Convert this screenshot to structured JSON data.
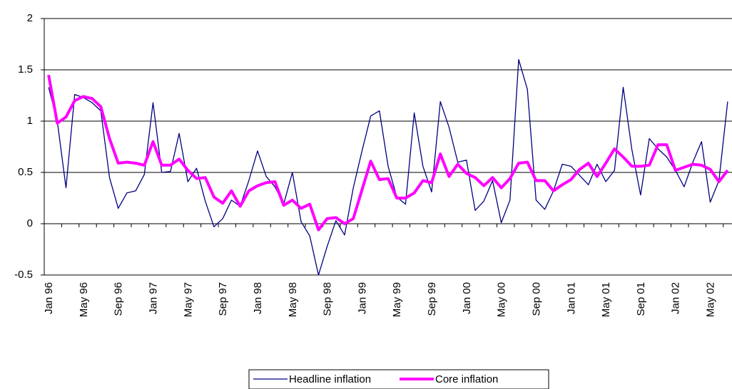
{
  "chart_data": {
    "type": "line",
    "categories": [
      "Jan 96",
      null,
      null,
      null,
      "May 96",
      null,
      null,
      null,
      "Sep 96",
      null,
      null,
      null,
      "Jan 97",
      null,
      null,
      null,
      "May 97",
      null,
      null,
      null,
      "Sep 97",
      null,
      null,
      null,
      "Jan 98",
      null,
      null,
      null,
      "May 98",
      null,
      null,
      null,
      "Sep 98",
      null,
      null,
      null,
      "Jan 99",
      null,
      null,
      null,
      "May 99",
      null,
      null,
      null,
      "Sep 99",
      null,
      null,
      null,
      "Jan 00",
      null,
      null,
      null,
      "May 00",
      null,
      null,
      null,
      "Sep 00",
      null,
      null,
      null,
      "Jan 01",
      null,
      null,
      null,
      "May 01",
      null,
      null,
      null,
      "Sep 01",
      null,
      null,
      null,
      "Jan 02",
      null,
      null,
      null,
      "May 02",
      null,
      null
    ],
    "series": [
      {
        "name": "Headline inflation",
        "color": "#000080",
        "values": [
          1.33,
          1.0,
          0.35,
          1.26,
          1.23,
          1.18,
          1.1,
          0.45,
          0.15,
          0.3,
          0.32,
          0.48,
          1.18,
          0.5,
          0.51,
          0.88,
          0.41,
          0.54,
          0.22,
          -0.03,
          0.05,
          0.23,
          0.17,
          0.42,
          0.71,
          0.46,
          0.36,
          0.19,
          0.5,
          0.02,
          -0.12,
          -0.5,
          -0.22,
          0.03,
          -0.11,
          0.35,
          0.71,
          1.05,
          1.1,
          0.56,
          0.26,
          0.19,
          1.08,
          0.56,
          0.31,
          1.19,
          0.94,
          0.6,
          0.62,
          0.13,
          0.22,
          0.42,
          0.01,
          0.23,
          1.6,
          1.31,
          0.23,
          0.14,
          0.32,
          0.58,
          0.56,
          0.47,
          0.38,
          0.58,
          0.41,
          0.52,
          1.33,
          0.72,
          0.28,
          0.83,
          0.73,
          0.65,
          0.52,
          0.36,
          0.6,
          0.8,
          0.21,
          0.42,
          1.19
        ]
      },
      {
        "name": "Core inflation",
        "color": "#ff00ff",
        "values": [
          1.45,
          0.98,
          1.04,
          1.2,
          1.24,
          1.22,
          1.14,
          0.83,
          0.59,
          0.6,
          0.59,
          0.57,
          0.8,
          0.57,
          0.57,
          0.63,
          0.52,
          0.44,
          0.45,
          0.26,
          0.2,
          0.32,
          0.17,
          0.32,
          0.37,
          0.4,
          0.41,
          0.18,
          0.23,
          0.15,
          0.19,
          -0.06,
          0.05,
          0.06,
          0.0,
          0.05,
          0.33,
          0.61,
          0.43,
          0.44,
          0.25,
          0.25,
          0.3,
          0.42,
          0.4,
          0.68,
          0.46,
          0.58,
          0.49,
          0.45,
          0.37,
          0.45,
          0.35,
          0.44,
          0.59,
          0.6,
          0.42,
          0.42,
          0.32,
          0.38,
          0.43,
          0.53,
          0.59,
          0.46,
          0.59,
          0.73,
          0.65,
          0.56,
          0.56,
          0.57,
          0.77,
          0.77,
          0.52,
          0.55,
          0.58,
          0.57,
          0.53,
          0.41,
          0.52
        ]
      }
    ],
    "ylim": [
      -0.5,
      2
    ],
    "yticks": [
      -0.5,
      0,
      0.5,
      1,
      1.5,
      2
    ],
    "grid": true,
    "legend": "bottom"
  }
}
